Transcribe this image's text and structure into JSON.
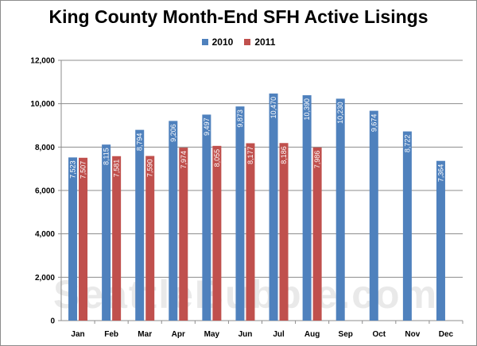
{
  "chart_data": {
    "type": "bar",
    "title": "King County Month-End SFH Active Lisings",
    "xlabel": "",
    "ylabel": "",
    "categories": [
      "Jan",
      "Feb",
      "Mar",
      "Apr",
      "May",
      "Jun",
      "Jul",
      "Aug",
      "Sep",
      "Oct",
      "Nov",
      "Dec"
    ],
    "series": [
      {
        "name": "2010",
        "color": "#4f81bd",
        "values": [
          7523,
          8115,
          8794,
          9206,
          9497,
          9873,
          10470,
          10390,
          10230,
          9674,
          8722,
          7364
        ],
        "labels": [
          "7,523",
          "8,115",
          "8,794",
          "9,206",
          "9,497",
          "9,873",
          "10,470",
          "10,390",
          "10,230",
          "9,674",
          "8,722",
          "7,364"
        ]
      },
      {
        "name": "2011",
        "color": "#c0504d",
        "values": [
          7507,
          7581,
          7590,
          7974,
          8055,
          8177,
          8186,
          7986,
          null,
          null,
          null,
          null
        ],
        "labels": [
          "7,507",
          "7,581",
          "7,590",
          "7,974",
          "8,055",
          "8,177",
          "8,186",
          "7,986",
          null,
          null,
          null,
          null
        ]
      }
    ],
    "ylim": [
      0,
      12000
    ],
    "yticks": [
      "0",
      "2,000",
      "4,000",
      "6,000",
      "8,000",
      "10,000",
      "12,000"
    ],
    "grid": true,
    "legend": "top-center",
    "watermark": "SeattleBubble.com"
  }
}
